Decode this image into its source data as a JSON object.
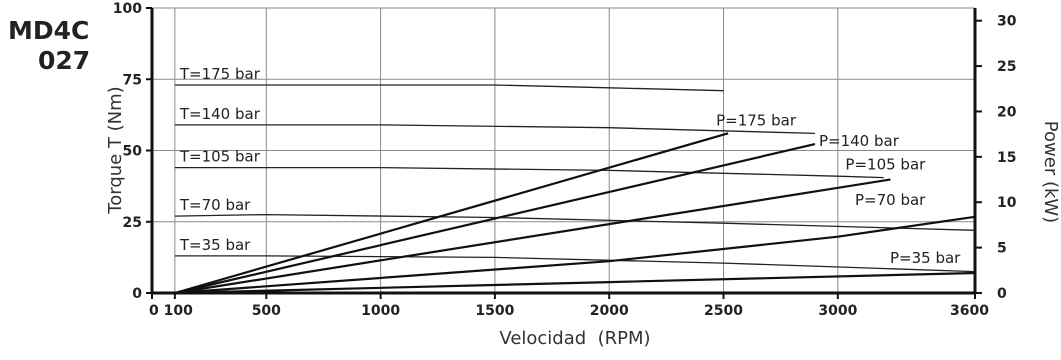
{
  "model": {
    "line1": "MD4C",
    "line2": "027"
  },
  "chart_data": {
    "type": "line",
    "xlabel": "Velocidad  (RPM)",
    "ylabel_left": "Torque T (Nm)",
    "ylabel_right": "Power (kW)",
    "xlim": [
      0,
      3600
    ],
    "ylim_left": [
      0,
      100
    ],
    "ylim_right": [
      0,
      31.4
    ],
    "grid": true,
    "x_ticks": [
      0,
      100,
      500,
      1000,
      1500,
      2000,
      2500,
      3000,
      3600
    ],
    "x_tick_labels": [
      {
        "value": 100,
        "label": "0 100"
      },
      {
        "value": 500,
        "label": "500"
      },
      {
        "value": 1000,
        "label": "1000"
      },
      {
        "value": 1500,
        "label": "1500"
      },
      {
        "value": 2000,
        "label": "2000"
      },
      {
        "value": 2500,
        "label": "2500"
      },
      {
        "value": 3000,
        "label": "3000"
      },
      {
        "value": 3600,
        "label": "3600"
      }
    ],
    "y_left_ticks": [
      0,
      25,
      50,
      75,
      100
    ],
    "y_left_tick_labels": [
      "0",
      "25",
      "50",
      "75",
      "100"
    ],
    "y_right_ticks": [
      0,
      5,
      10,
      15,
      20,
      25,
      30
    ],
    "y_right_tick_labels": [
      "0",
      "5",
      "10",
      "15",
      "20",
      "25",
      "30"
    ],
    "torque_series": [
      {
        "name": "T=175 bar",
        "x": [
          100,
          1500,
          2000,
          2500
        ],
        "y": [
          73,
          73,
          72,
          71
        ]
      },
      {
        "name": "T=140 bar",
        "x": [
          100,
          1000,
          2000,
          2900
        ],
        "y": [
          59,
          59,
          58,
          56
        ]
      },
      {
        "name": "T=105 bar",
        "x": [
          100,
          1000,
          2000,
          3000,
          3200
        ],
        "y": [
          44,
          44,
          43,
          41,
          40.5
        ]
      },
      {
        "name": "T=70 bar",
        "x": [
          100,
          500,
          1500,
          2500,
          3600
        ],
        "y": [
          27,
          27.5,
          26.5,
          24.5,
          22
        ]
      },
      {
        "name": "T=35 bar",
        "x": [
          100,
          500,
          1500,
          2500,
          3600
        ],
        "y": [
          13,
          13,
          12.5,
          10.5,
          7.5
        ]
      }
    ],
    "power_series": [
      {
        "name": "P=175 bar",
        "x": [
          100,
          2520
        ],
        "y": [
          0,
          17.6
        ]
      },
      {
        "name": "P=140 bar",
        "x": [
          100,
          2900
        ],
        "y": [
          0,
          16.4
        ]
      },
      {
        "name": "P=105 bar",
        "x": [
          100,
          3230
        ],
        "y": [
          0,
          12.5
        ]
      },
      {
        "name": "P=70 bar",
        "x": [
          100,
          2000,
          3000,
          3600
        ],
        "y": [
          0,
          3.5,
          6.2,
          8.4
        ]
      },
      {
        "name": "P=35 bar",
        "x": [
          100,
          2000,
          3600
        ],
        "y": [
          0,
          1.2,
          2.2
        ]
      }
    ]
  }
}
